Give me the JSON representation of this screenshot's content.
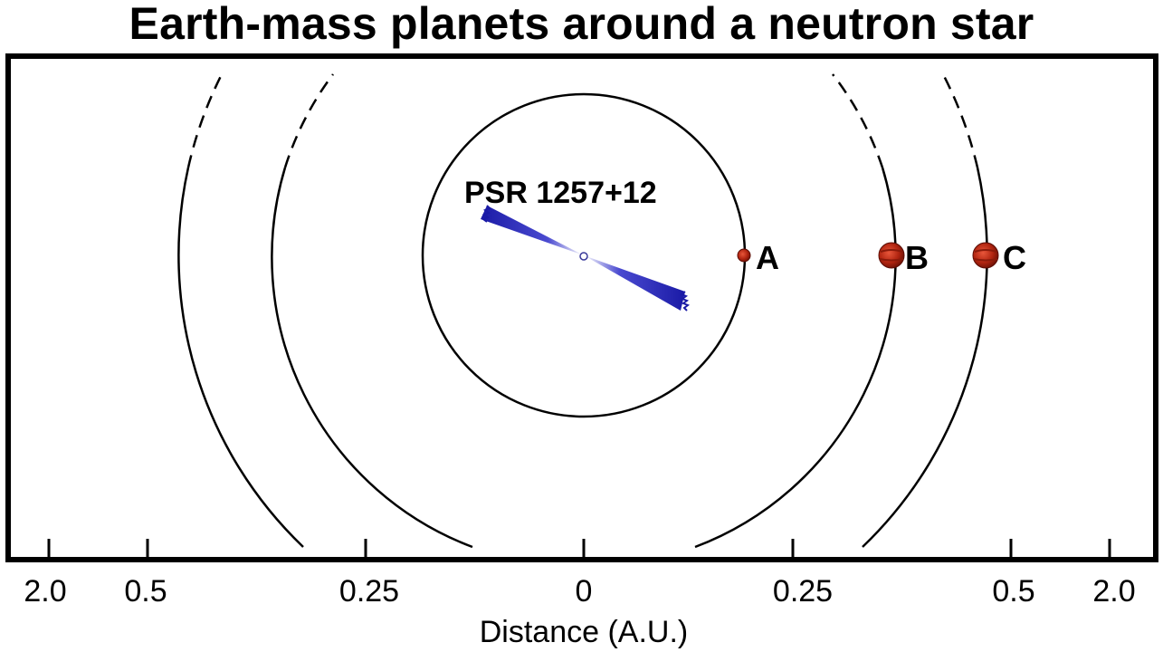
{
  "title": "Earth-mass planets around a neutron star",
  "axis": {
    "xlabel": "Distance (A.U.)",
    "tick_labels": [
      "2.0",
      "0.5",
      "0.25",
      "0",
      "0.25",
      "0.5",
      "2.0"
    ]
  },
  "star": {
    "label": "PSR 1257+12",
    "beam_color": "#1a1aa6"
  },
  "planets": [
    {
      "label": "A",
      "distance_au": 0.19,
      "size": "small"
    },
    {
      "label": "B",
      "distance_au": 0.36,
      "size": "large"
    },
    {
      "label": "C",
      "distance_au": 0.47,
      "size": "large"
    }
  ],
  "colors": {
    "frame": "#000000",
    "orbit": "#000000",
    "planet": "#c0301a",
    "planet_dark": "#7a1408",
    "background": "#ffffff"
  }
}
